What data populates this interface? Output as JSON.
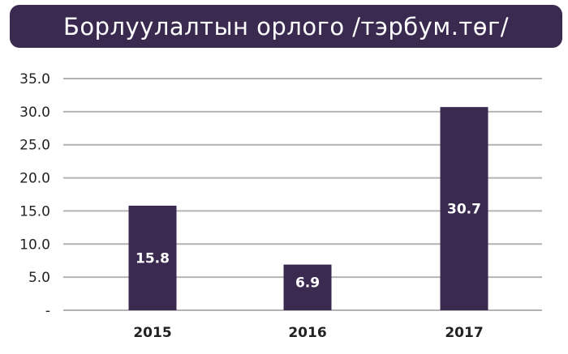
{
  "chart_data": {
    "type": "bar",
    "title": "Борлуулалтын орлого /тэрбум.төг/",
    "categories": [
      "2015",
      "2016",
      "2017"
    ],
    "values": [
      15.8,
      6.9,
      30.7
    ],
    "data_labels": [
      "15.8",
      "6.9",
      "30.7"
    ],
    "y_ticks": [
      "-",
      "5.0",
      "10.0",
      "15.0",
      "20.0",
      "25.0",
      "30.0",
      "35.0"
    ],
    "ylim": [
      0,
      35
    ],
    "grid": true,
    "legend": "none",
    "bar_color": "#3a2a50",
    "grid_color": "#b3b3b3"
  }
}
